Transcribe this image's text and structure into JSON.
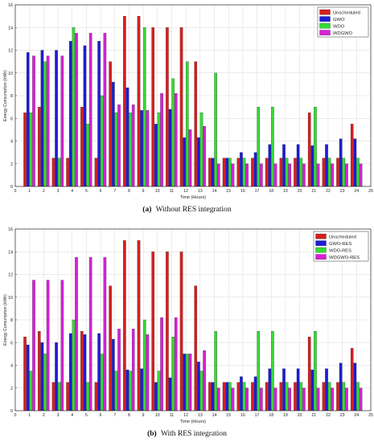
{
  "colors": {
    "Unscheduled": "#d81e1e",
    "GWO": "#1c1cd8",
    "WDO": "#33dd33",
    "WDGWO": "#d91fd9",
    "GWO-RES": "#1c1cd8",
    "WDO-RES": "#33dd33",
    "WDGWO-RES": "#d91fd9"
  },
  "chart_data": [
    {
      "type": "bar",
      "caption_tag": "(a)",
      "caption_text": "Without RES integration",
      "xlabel": "Time (Hours)",
      "ylabel": "Energy Consumption (kWh)",
      "xlim": [
        0,
        25
      ],
      "ylim": [
        0,
        16
      ],
      "xticks": [
        0,
        1,
        2,
        3,
        4,
        5,
        6,
        7,
        8,
        9,
        10,
        11,
        12,
        13,
        14,
        15,
        16,
        17,
        18,
        19,
        20,
        21,
        22,
        23,
        24,
        25
      ],
      "yticks": [
        0,
        2,
        4,
        6,
        8,
        10,
        12,
        14,
        16
      ],
      "grid": true,
      "legend_position": "top-right",
      "categories": [
        1,
        2,
        3,
        4,
        5,
        6,
        7,
        8,
        9,
        10,
        11,
        12,
        13,
        14,
        15,
        16,
        17,
        18,
        19,
        20,
        21,
        22,
        23,
        24
      ],
      "series": [
        {
          "name": "Unscheduled",
          "values": [
            6.5,
            7,
            2.5,
            2.5,
            7,
            2.5,
            11,
            15,
            15,
            14,
            14,
            14,
            11,
            2.5,
            2.5,
            2.5,
            2.5,
            2.5,
            2.5,
            2.5,
            6.5,
            2.5,
            2.5,
            5.5
          ]
        },
        {
          "name": "GWO",
          "values": [
            11.8,
            12,
            12,
            12.8,
            12.4,
            12.8,
            9.2,
            8.7,
            6.7,
            5.5,
            6.8,
            4.3,
            4.3,
            2.5,
            2.5,
            3.0,
            3.0,
            3.7,
            3.7,
            3.7,
            3.6,
            3.7,
            4.2,
            4.2
          ]
        },
        {
          "name": "WDO",
          "values": [
            6.5,
            11,
            2.5,
            14,
            5.5,
            8,
            6.5,
            6.5,
            14,
            6.5,
            9.5,
            11,
            6.5,
            10,
            2.5,
            2.5,
            7,
            7,
            2.5,
            2.5,
            7,
            2.5,
            2.5,
            2.5
          ]
        },
        {
          "name": "WDGWO",
          "values": [
            11.5,
            11.5,
            11.5,
            13.5,
            13.5,
            13.5,
            7.2,
            7.2,
            6.7,
            8.2,
            8.2,
            5,
            5.3,
            2,
            2,
            2,
            2,
            2,
            2,
            2,
            2,
            2,
            2,
            2
          ]
        }
      ]
    },
    {
      "type": "bar",
      "caption_tag": "(b)",
      "caption_text": "With RES integration",
      "xlabel": "Time (Hours)",
      "ylabel": "Energy Consumption (kWh)",
      "xlim": [
        0,
        25
      ],
      "ylim": [
        0,
        16
      ],
      "xticks": [
        0,
        1,
        2,
        3,
        4,
        5,
        6,
        7,
        8,
        9,
        10,
        11,
        12,
        13,
        14,
        15,
        16,
        17,
        18,
        19,
        20,
        21,
        22,
        23,
        24,
        25
      ],
      "yticks": [
        0,
        2,
        4,
        6,
        8,
        10,
        12,
        14,
        16
      ],
      "grid": true,
      "legend_position": "top-right",
      "categories": [
        1,
        2,
        3,
        4,
        5,
        6,
        7,
        8,
        9,
        10,
        11,
        12,
        13,
        14,
        15,
        16,
        17,
        18,
        19,
        20,
        21,
        22,
        23,
        24
      ],
      "series": [
        {
          "name": "Unscheduled",
          "values": [
            6.5,
            7,
            2.5,
            2.5,
            7,
            2.5,
            11,
            15,
            15,
            14,
            14,
            14,
            11,
            2.5,
            2.5,
            2.5,
            2.5,
            2.5,
            2.5,
            2.5,
            6.5,
            2.5,
            2.5,
            5.5
          ]
        },
        {
          "name": "GWO-RES",
          "values": [
            5.8,
            6.0,
            6.0,
            6.8,
            6.7,
            6.8,
            6.3,
            3.6,
            3.7,
            2.5,
            2.9,
            5.0,
            4.3,
            2.5,
            2.5,
            3.0,
            3.0,
            3.7,
            3.7,
            3.7,
            3.6,
            3.7,
            4.2,
            4.2
          ]
        },
        {
          "name": "WDO-RES",
          "values": [
            3.5,
            5,
            2.5,
            8,
            2.5,
            5,
            3.5,
            3.5,
            8,
            3.5,
            6.5,
            5,
            3.5,
            7,
            2.5,
            2.5,
            7,
            7,
            2.5,
            2.5,
            7,
            2.5,
            2.5,
            2.5
          ]
        },
        {
          "name": "WDGWO-RES",
          "values": [
            11.5,
            11.5,
            11.5,
            13.5,
            13.5,
            13.5,
            7.2,
            7.2,
            6.7,
            8.2,
            8.2,
            5,
            5.3,
            2,
            2,
            2,
            2,
            2,
            2,
            2,
            2,
            2,
            2,
            2
          ]
        }
      ]
    }
  ]
}
